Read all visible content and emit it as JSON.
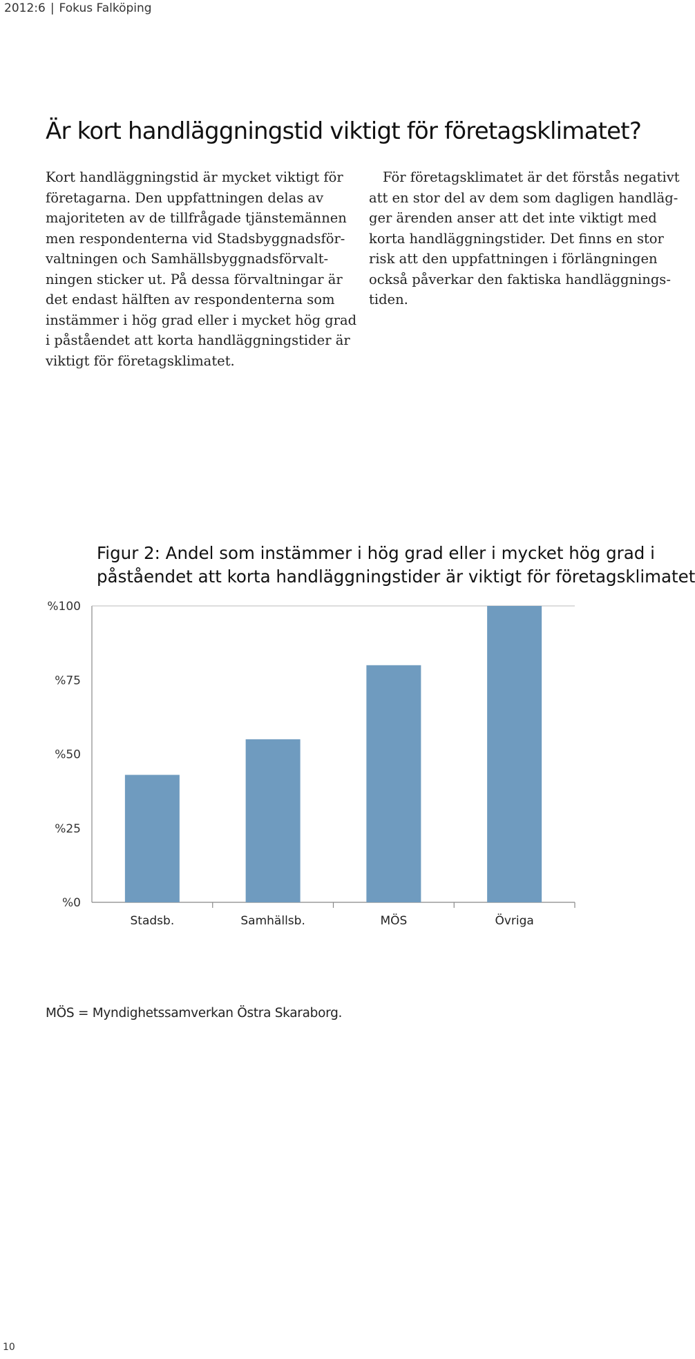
{
  "header": {
    "issue": "2012:6",
    "separator": "|",
    "publication": "Fokus Falköping"
  },
  "article": {
    "title": "Är kort handläggningstid viktigt för företagsklimatet?",
    "left_column_lines": [
      "Kort handläggningstid är mycket viktigt för",
      "företagarna. Den uppfattningen delas av",
      "majoriteten av de tillfrågade tjänstemännen",
      "men respondenterna vid Stadsbyggnadsför-",
      "valtningen och Samhällsbyggnadsförvalt-",
      "ningen sticker ut. På dessa förvaltningar är",
      "det endast hälften av respondenterna som",
      "instämmer i hög grad eller i mycket hög grad",
      "i påståendet att korta handläggningstider är",
      "viktigt för företagsklimatet."
    ],
    "right_column_lines": [
      "För företagsklimatet är det förstås negativt",
      "att en stor del av dem som dagligen handläg-",
      "ger ärenden anser att det inte viktigt med",
      "korta handläggningstider. Det finns en stor",
      "risk att den uppfattningen i förlängningen",
      "också påverkar den faktiska handläggnings-",
      "tiden."
    ]
  },
  "figure": {
    "caption_lines": [
      "Figur 2: Andel som instämmer i hög grad eller i mycket hög grad i",
      "påståendet att korta handläggningstider är viktigt för företagsklimatet"
    ],
    "footnote": "MÖS = Myndighetssamverkan Östra Skaraborg."
  },
  "chart_data": {
    "type": "bar",
    "categories": [
      "Stadsb.",
      "Samhällsb.",
      "MÖS",
      "Övriga"
    ],
    "values": [
      43,
      55,
      80,
      100
    ],
    "ylim": [
      0,
      100
    ],
    "yticks": [
      0,
      25,
      50,
      75,
      100
    ],
    "ytick_labels": [
      "%0",
      "%25",
      "%50",
      "%75",
      "%100"
    ],
    "title": "Figur 2: Andel som instämmer i hög grad eller i mycket hög grad i påståendet att korta handläggningstider är viktigt för företagsklimatet",
    "xlabel": "",
    "ylabel": "",
    "grid": false,
    "bar_color": "#6f9bbf",
    "axis_color": "#888888"
  },
  "page_number": "10"
}
